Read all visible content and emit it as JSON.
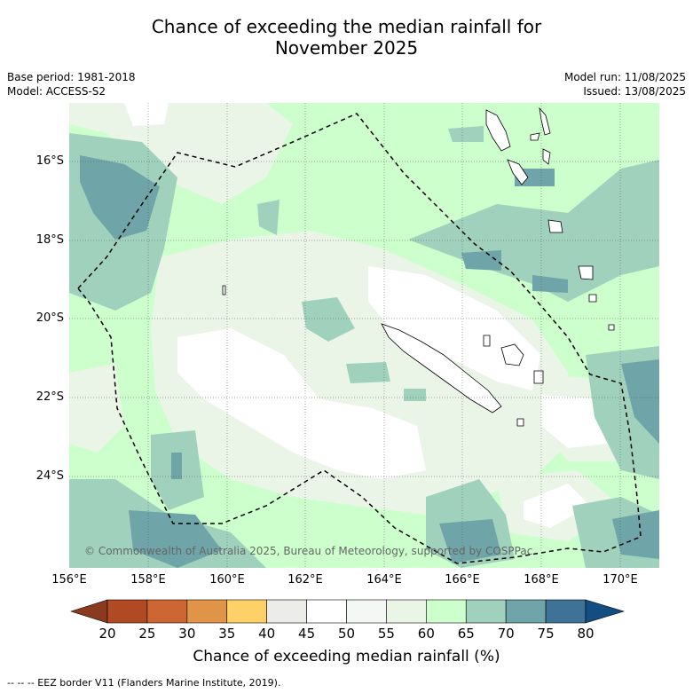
{
  "title_line1": "Chance of exceeding the median rainfall for",
  "title_line2": "November 2025",
  "base_period": "Base period: 1981-2018",
  "model": "Model: ACCESS-S2",
  "model_run": "Model run: 11/08/2025",
  "issued": "Issued: 13/08/2025",
  "copyright": "© Commonwealth of Australia 2025, Bureau of Meteorology, supported by COSPPac",
  "footer": "--  --  -- EEZ border V11 (Flanders Marine Institute, 2019).",
  "lat_labels": [
    "16°S",
    "18°S",
    "20°S",
    "22°S",
    "24°S"
  ],
  "lon_labels": [
    "156°E",
    "158°E",
    "160°E",
    "162°E",
    "164°E",
    "166°E",
    "168°E",
    "170°E"
  ],
  "colorbar": {
    "title": "Chance of exceeding median rainfall (%)",
    "ticks": [
      "20",
      "25",
      "30",
      "35",
      "40",
      "45",
      "50",
      "55",
      "60",
      "65",
      "70",
      "75",
      "80"
    ],
    "colors": [
      "#8a3a1e",
      "#b04a22",
      "#cc6633",
      "#e09447",
      "#fdd068",
      "#ececE8",
      "#ffffff",
      "#f4f8f4",
      "#eaf5e8",
      "#ccffcc",
      "#9fd1bc",
      "#6fa5a8",
      "#3e7296",
      "#124e82"
    ]
  },
  "colors": {
    "map_background": "#ccffcc",
    "eez_border": "#000000",
    "gridline": "#555555"
  }
}
